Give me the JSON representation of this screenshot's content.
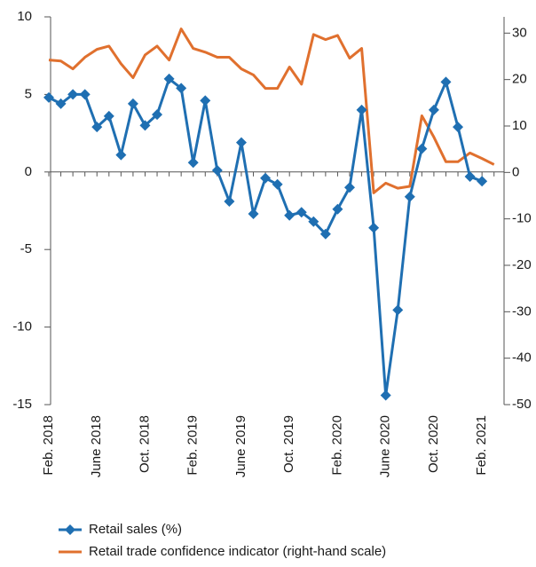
{
  "chart_data": {
    "type": "line",
    "categories": [
      "Feb. 2018",
      null,
      null,
      null,
      "June 2018",
      null,
      null,
      null,
      "Oct. 2018",
      null,
      null,
      null,
      "Feb. 2019",
      null,
      null,
      null,
      "June 2019",
      null,
      null,
      null,
      "Oct. 2019",
      null,
      null,
      null,
      "Feb. 2020",
      null,
      null,
      null,
      "June 2020",
      null,
      null,
      null,
      "Oct. 2020",
      null,
      null,
      null,
      "Feb. 2021",
      null
    ],
    "ylim": [
      -15,
      10
    ],
    "yticks": [
      -15,
      -10,
      -5,
      0,
      5,
      10
    ],
    "y2lim": [
      -50,
      33.5
    ],
    "y2ticks": [
      -50,
      -40,
      -30,
      -20,
      -10,
      0,
      10,
      20,
      30
    ],
    "series": [
      {
        "name": "Retail sales  (%)",
        "color": "#1f6fb2",
        "marker": "diamond",
        "values": [
          4.8,
          4.4,
          5.0,
          5.0,
          2.9,
          3.6,
          1.1,
          4.4,
          3.0,
          3.7,
          6.0,
          5.4,
          0.6,
          4.6,
          0.1,
          -1.9,
          1.9,
          -2.7,
          -0.4,
          -0.8,
          -2.8,
          -2.6,
          -3.2,
          -4.0,
          -2.4,
          -1.0,
          4.0,
          -3.6,
          -14.4,
          -8.9,
          -1.6,
          1.5,
          4.0,
          5.8,
          2.9,
          -0.3,
          -0.6,
          null
        ]
      },
      {
        "name": "Retail trade confidence indicator (right-hand scale)",
        "color": "#e0702e",
        "axis": "y2",
        "values": [
          24.2,
          24.0,
          22.3,
          24.8,
          26.5,
          27.2,
          23.4,
          20.4,
          25.3,
          27.2,
          24.2,
          30.9,
          26.7,
          25.9,
          24.8,
          24.8,
          22.3,
          21.0,
          18.1,
          18.1,
          22.7,
          19.0,
          29.7,
          28.6,
          29.5,
          24.6,
          26.7,
          -4.4,
          -2.3,
          -3.4,
          -3.0,
          12.2,
          7.6,
          2.3,
          2.3,
          4.2,
          3.0,
          1.7
        ]
      }
    ]
  }
}
